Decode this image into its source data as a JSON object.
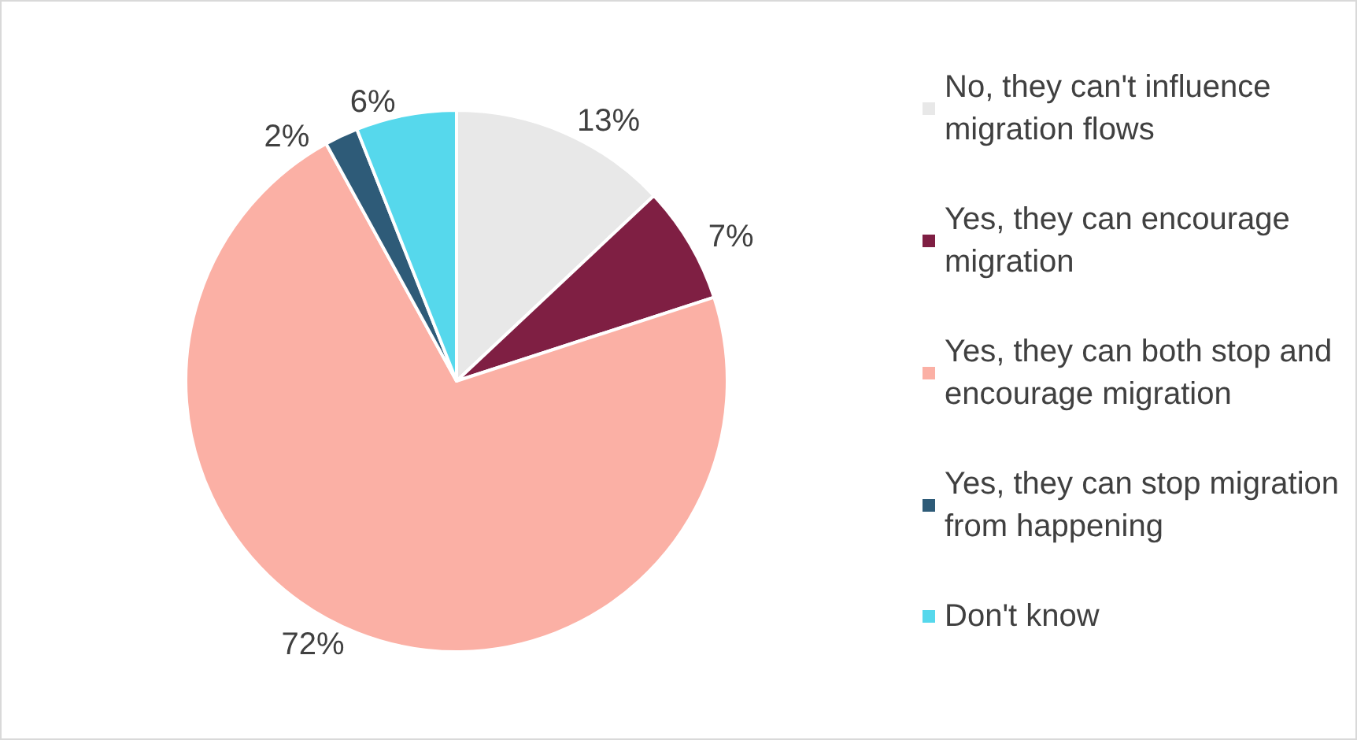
{
  "chart_data": {
    "type": "pie",
    "categories": [
      "No, they can't influence migration flows",
      "Yes, they can encourage migration",
      "Yes, they can both stop and encourage migration",
      "Yes, they can stop migration from happening",
      "Don't know"
    ],
    "values": [
      13,
      7,
      72,
      2,
      6
    ],
    "colors": [
      "#e8e8e8",
      "#7f1f43",
      "#fbb0a5",
      "#2e5b78",
      "#56d8ec"
    ],
    "value_labels": [
      "13%",
      "7%",
      "72%",
      "2%",
      "6%"
    ],
    "legend": "right"
  }
}
